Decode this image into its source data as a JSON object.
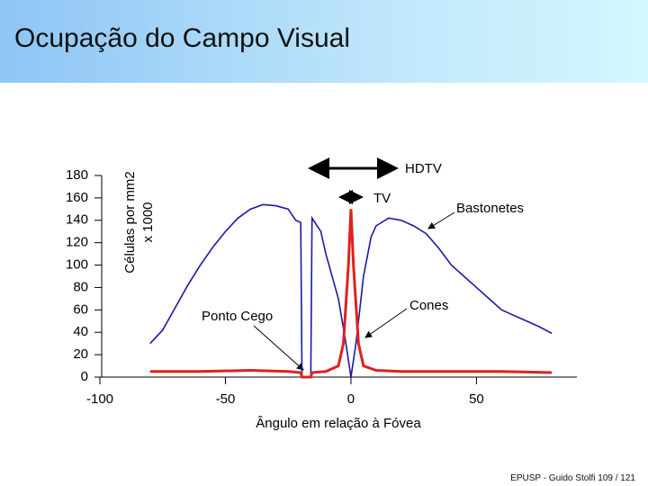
{
  "header": {
    "title": "Ocupação do Campo Visual"
  },
  "footer": {
    "text": "EPUSP - Guido Stolfi   109 / 121"
  },
  "chart_data": {
    "type": "line",
    "ylabel": [
      "Células por mm2",
      "x 1000"
    ],
    "xlabel": "Ângulo em relação à Fóvea",
    "xlim": [
      -100,
      90
    ],
    "ylim": [
      0,
      180
    ],
    "xticks": [
      -100,
      -50,
      0,
      50
    ],
    "yticks": [
      0,
      20,
      40,
      60,
      80,
      100,
      120,
      140,
      160,
      180
    ],
    "annotations": [
      "HDTV",
      "TV",
      "Ponto Cego"
    ],
    "series": [
      {
        "name": "Bastonetes",
        "color": "#1a1aa6",
        "x": [
          -80,
          -75,
          -70,
          -65,
          -60,
          -55,
          -50,
          -45,
          -40,
          -35,
          -30,
          -25,
          -22,
          -20,
          -19.5,
          -16,
          -15.5,
          -12,
          -10,
          -5,
          -2,
          0,
          2,
          5,
          8,
          10,
          15,
          20,
          25,
          30,
          35,
          40,
          45,
          50,
          55,
          60,
          65,
          70,
          75,
          80
        ],
        "values": [
          30,
          42,
          62,
          82,
          100,
          116,
          130,
          142,
          150,
          154,
          153,
          150,
          140,
          138,
          0,
          0,
          142,
          130,
          110,
          70,
          30,
          0,
          30,
          90,
          125,
          135,
          142,
          140,
          135,
          128,
          115,
          100,
          90,
          80,
          70,
          60,
          55,
          50,
          45,
          39
        ]
      },
      {
        "name": "Cones",
        "color": "#e0201c",
        "x": [
          -80,
          -60,
          -40,
          -25,
          -20,
          -19.5,
          -16,
          -15.5,
          -10,
          -5,
          -3,
          -1,
          0,
          1,
          3,
          5,
          10,
          20,
          40,
          60,
          80
        ],
        "values": [
          5,
          5,
          6,
          5,
          4,
          0,
          0,
          4,
          5,
          10,
          30,
          100,
          150,
          100,
          30,
          10,
          6,
          5,
          5,
          5,
          4
        ]
      }
    ]
  }
}
